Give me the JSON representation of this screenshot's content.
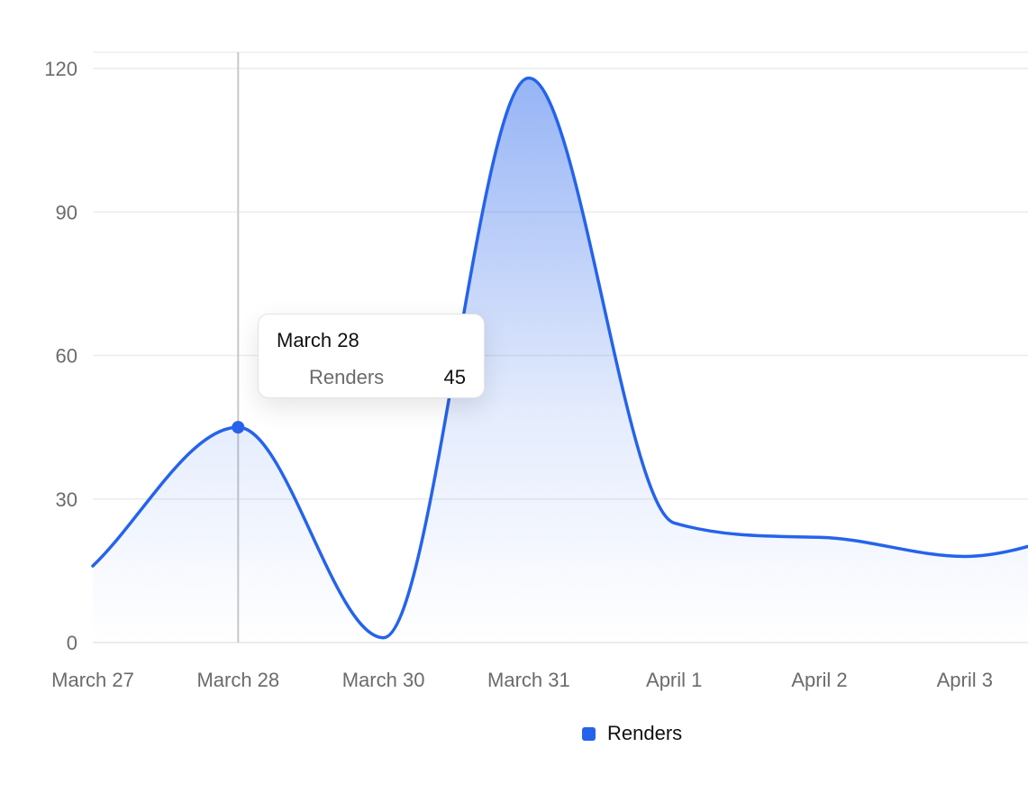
{
  "chart_data": {
    "type": "area",
    "title": "",
    "xlabel": "",
    "ylabel": "",
    "categories": [
      "March 27",
      "March 28",
      "March 30",
      "March 31",
      "April 1",
      "April 2",
      "April 3"
    ],
    "series": [
      {
        "name": "Renders",
        "color": "#2563eb",
        "values": [
          16,
          45,
          1,
          118,
          25,
          22,
          18
        ]
      }
    ],
    "extra_trailing_value": 25,
    "ylim": [
      0,
      120
    ],
    "yticks": [
      0,
      30,
      60,
      90,
      120
    ],
    "grid": true,
    "legend_position": "bottom-center",
    "tooltip": {
      "category": "March 28",
      "series_name": "Renders",
      "value": "45"
    }
  }
}
